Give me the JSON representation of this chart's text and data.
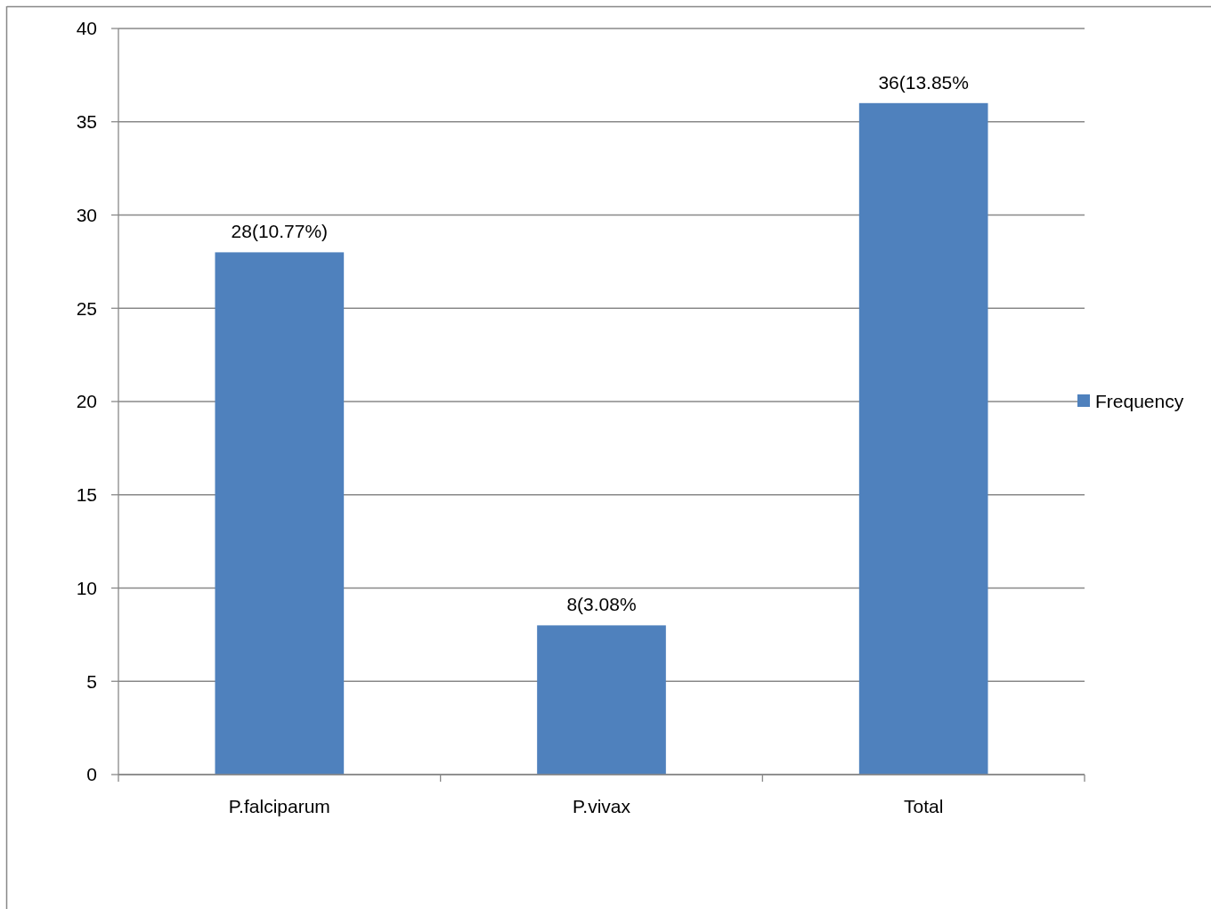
{
  "chart_data": {
    "type": "bar",
    "categories": [
      "P.falciparum",
      "P.vivax",
      "Total"
    ],
    "series": [
      {
        "name": "Frequency",
        "color": "#4f81bd",
        "values": [
          28,
          8,
          36
        ],
        "value_labels": [
          "28(10.77%)",
          "8(3.08%",
          "36(13.85%"
        ]
      }
    ],
    "ylim": [
      0,
      40
    ],
    "yticks": [
      0,
      5,
      10,
      15,
      20,
      25,
      30,
      35,
      40
    ],
    "grid": "y",
    "legend": "right"
  }
}
